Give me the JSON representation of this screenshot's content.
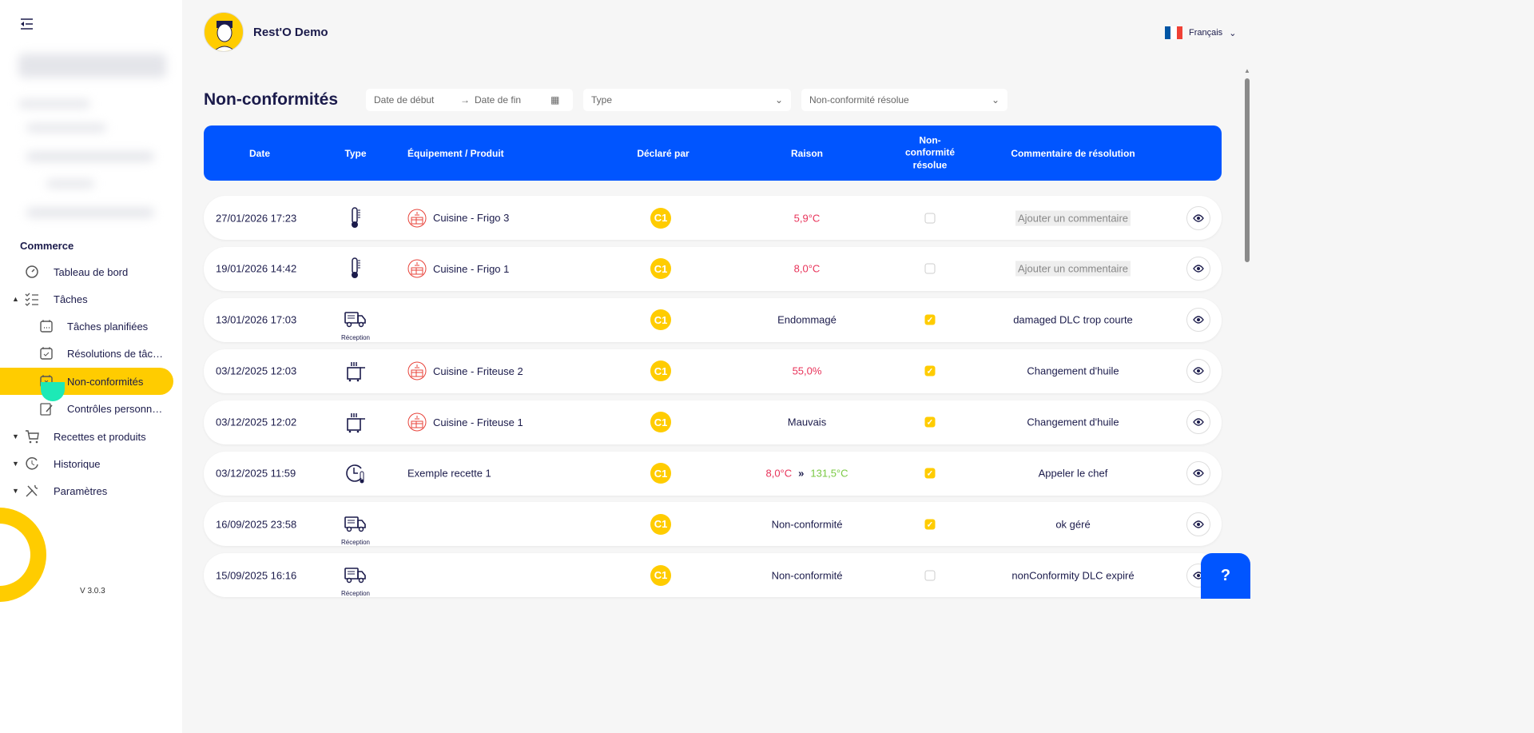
{
  "sidebar": {
    "section": "Commerce",
    "items": [
      {
        "label": "Tableau de bord",
        "icon": "dashboard-gauge-icon"
      },
      {
        "label": "Tâches",
        "icon": "checklist-icon",
        "expanded": true
      },
      {
        "label": "Tâches planifiées",
        "icon": "calendar-dots-icon",
        "sub": true
      },
      {
        "label": "Résolutions de tâches",
        "icon": "calendar-check-icon",
        "sub": true
      },
      {
        "label": "Non-conformités",
        "icon": "calendar-x-icon",
        "sub": true,
        "active": true
      },
      {
        "label": "Contrôles personnalisés",
        "icon": "clipboard-edit-icon",
        "sub": true
      },
      {
        "label": "Recettes et produits",
        "icon": "cart-icon"
      },
      {
        "label": "Historique",
        "icon": "history-icon"
      },
      {
        "label": "Paramètres",
        "icon": "tools-icon"
      }
    ],
    "version": "V 3.0.3"
  },
  "header": {
    "brand": "Rest'O Demo",
    "language": "Français"
  },
  "page": {
    "title": "Non-conformités"
  },
  "filters": {
    "start_placeholder": "Date de début",
    "end_placeholder": "Date de fin",
    "type_placeholder": "Type",
    "resolved_placeholder": "Non-conformité résolue"
  },
  "table": {
    "headers": {
      "date": "Date",
      "type": "Type",
      "equipment": "Équipement / Produit",
      "declared_by": "Déclaré par",
      "reason": "Raison",
      "resolved": "Non-\nconformité\nrésolue",
      "comment": "Commentaire de résolution"
    },
    "rows": [
      {
        "date": "27/01/2026 17:23",
        "type": "temperature",
        "type_label": "",
        "equipment": "Cuisine - Frigo 3",
        "declared_by": "C1",
        "reason": "5,9°C",
        "reason_color": "red",
        "resolved": false,
        "comment": "Ajouter un commentaire",
        "comment_empty": true
      },
      {
        "date": "19/01/2026 14:42",
        "type": "temperature",
        "type_label": "",
        "equipment": "Cuisine - Frigo 1",
        "declared_by": "C1",
        "reason": "8,0°C",
        "reason_color": "red",
        "resolved": false,
        "comment": "Ajouter un commentaire",
        "comment_empty": true
      },
      {
        "date": "13/01/2026 17:03",
        "type": "reception",
        "type_label": "Réception",
        "equipment": "",
        "declared_by": "C1",
        "reason": "Endommagé",
        "resolved": true,
        "comment": "damaged DLC trop courte"
      },
      {
        "date": "03/12/2025 12:03",
        "type": "fryer",
        "type_label": "",
        "equipment": "Cuisine - Friteuse 2",
        "declared_by": "C1",
        "reason": "55,0%",
        "reason_color": "red",
        "resolved": true,
        "comment": "Changement d'huile"
      },
      {
        "date": "03/12/2025 12:02",
        "type": "fryer",
        "type_label": "",
        "equipment": "Cuisine - Friteuse 1",
        "declared_by": "C1",
        "reason": "Mauvais",
        "resolved": true,
        "comment": "Changement d'huile"
      },
      {
        "date": "03/12/2025 11:59",
        "type": "cooling",
        "type_label": "",
        "equipment": "Exemple recette 1",
        "declared_by": "C1",
        "reason": "8,0°C",
        "reason_color": "red",
        "reason_to": "131,5°C",
        "resolved": true,
        "comment": "Appeler le chef"
      },
      {
        "date": "16/09/2025 23:58",
        "type": "reception",
        "type_label": "Réception",
        "equipment": "",
        "declared_by": "C1",
        "reason": "Non-conformité",
        "resolved": true,
        "comment": "ok géré"
      },
      {
        "date": "15/09/2025 16:16",
        "type": "reception",
        "type_label": "Réception",
        "equipment": "",
        "declared_by": "C1",
        "reason": "Non-conformité",
        "resolved": false,
        "comment": "nonConformity DLC expiré"
      }
    ]
  },
  "help": {
    "label": "?"
  }
}
